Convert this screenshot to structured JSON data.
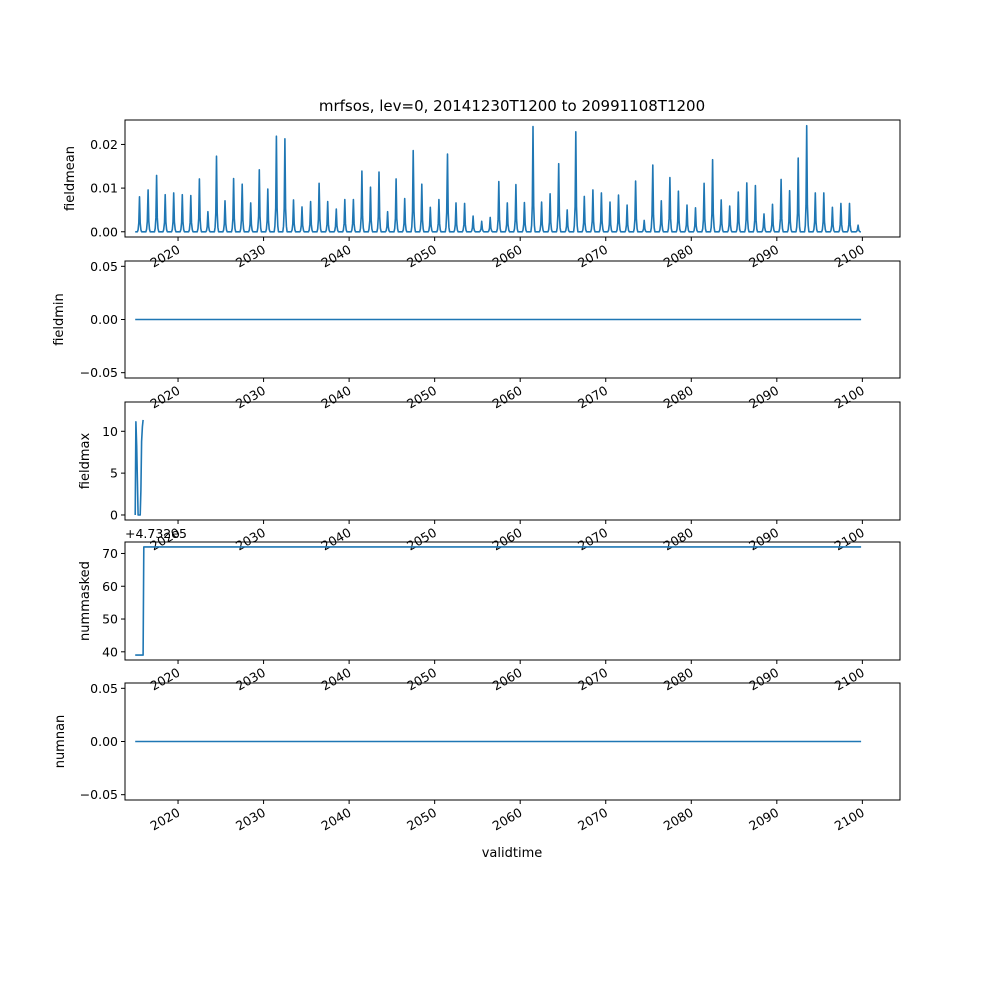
{
  "chart_data": {
    "title": "mrfsos, lev=0, 20141230T1200 to 20991108T1200",
    "xlabel": "validtime",
    "x_start": "2014-12-30",
    "x_end": "2099-11-08",
    "xlim": [
      2013.8,
      2104.4
    ],
    "x_ticks": [
      2020,
      2030,
      2040,
      2050,
      2060,
      2070,
      2080,
      2090,
      2100
    ],
    "series_step": "monthly",
    "panels": [
      {
        "type": "line",
        "ylabel": "fieldmean",
        "ylim": [
          -0.0012,
          0.0256
        ],
        "yticks": [
          0.0,
          0.01,
          0.02
        ],
        "ytick_labels": [
          "0.00",
          "0.01",
          "0.02"
        ],
        "baseline": 0.0,
        "annual_peaks": [
          {
            "year": 2015,
            "peak": 0.008
          },
          {
            "year": 2016,
            "peak": 0.0096
          },
          {
            "year": 2017,
            "peak": 0.0129
          },
          {
            "year": 2018,
            "peak": 0.0085
          },
          {
            "year": 2019,
            "peak": 0.0089
          },
          {
            "year": 2020,
            "peak": 0.0085
          },
          {
            "year": 2021,
            "peak": 0.0083
          },
          {
            "year": 2022,
            "peak": 0.0121
          },
          {
            "year": 2023,
            "peak": 0.0046
          },
          {
            "year": 2024,
            "peak": 0.0173
          },
          {
            "year": 2025,
            "peak": 0.0071
          },
          {
            "year": 2026,
            "peak": 0.0122
          },
          {
            "year": 2027,
            "peak": 0.0109
          },
          {
            "year": 2028,
            "peak": 0.0066
          },
          {
            "year": 2029,
            "peak": 0.0142
          },
          {
            "year": 2030,
            "peak": 0.0098
          },
          {
            "year": 2031,
            "peak": 0.0219
          },
          {
            "year": 2032,
            "peak": 0.0213
          },
          {
            "year": 2033,
            "peak": 0.0073
          },
          {
            "year": 2034,
            "peak": 0.0057
          },
          {
            "year": 2035,
            "peak": 0.0069
          },
          {
            "year": 2036,
            "peak": 0.0111
          },
          {
            "year": 2037,
            "peak": 0.0069
          },
          {
            "year": 2038,
            "peak": 0.0052
          },
          {
            "year": 2039,
            "peak": 0.0074
          },
          {
            "year": 2040,
            "peak": 0.0074
          },
          {
            "year": 2041,
            "peak": 0.0139
          },
          {
            "year": 2042,
            "peak": 0.0102
          },
          {
            "year": 2043,
            "peak": 0.0137
          },
          {
            "year": 2044,
            "peak": 0.0046
          },
          {
            "year": 2045,
            "peak": 0.0121
          },
          {
            "year": 2046,
            "peak": 0.0076
          },
          {
            "year": 2047,
            "peak": 0.0186
          },
          {
            "year": 2048,
            "peak": 0.0109
          },
          {
            "year": 2049,
            "peak": 0.0056
          },
          {
            "year": 2050,
            "peak": 0.0074
          },
          {
            "year": 2051,
            "peak": 0.0178
          },
          {
            "year": 2052,
            "peak": 0.0066
          },
          {
            "year": 2053,
            "peak": 0.0065
          },
          {
            "year": 2054,
            "peak": 0.0036
          },
          {
            "year": 2055,
            "peak": 0.0024
          },
          {
            "year": 2056,
            "peak": 0.0033
          },
          {
            "year": 2057,
            "peak": 0.0115
          },
          {
            "year": 2058,
            "peak": 0.0066
          },
          {
            "year": 2059,
            "peak": 0.0108
          },
          {
            "year": 2060,
            "peak": 0.0067
          },
          {
            "year": 2061,
            "peak": 0.0241
          },
          {
            "year": 2062,
            "peak": 0.0068
          },
          {
            "year": 2063,
            "peak": 0.0087
          },
          {
            "year": 2064,
            "peak": 0.0156
          },
          {
            "year": 2065,
            "peak": 0.005
          },
          {
            "year": 2066,
            "peak": 0.0229
          },
          {
            "year": 2067,
            "peak": 0.0081
          },
          {
            "year": 2068,
            "peak": 0.0096
          },
          {
            "year": 2069,
            "peak": 0.0089
          },
          {
            "year": 2070,
            "peak": 0.0068
          },
          {
            "year": 2071,
            "peak": 0.0084
          },
          {
            "year": 2072,
            "peak": 0.0061
          },
          {
            "year": 2073,
            "peak": 0.0116
          },
          {
            "year": 2074,
            "peak": 0.0026
          },
          {
            "year": 2075,
            "peak": 0.0153
          },
          {
            "year": 2076,
            "peak": 0.0071
          },
          {
            "year": 2077,
            "peak": 0.0124
          },
          {
            "year": 2078,
            "peak": 0.0093
          },
          {
            "year": 2079,
            "peak": 0.0061
          },
          {
            "year": 2080,
            "peak": 0.0055
          },
          {
            "year": 2081,
            "peak": 0.0111
          },
          {
            "year": 2082,
            "peak": 0.0165
          },
          {
            "year": 2083,
            "peak": 0.0073
          },
          {
            "year": 2084,
            "peak": 0.0059
          },
          {
            "year": 2085,
            "peak": 0.0091
          },
          {
            "year": 2086,
            "peak": 0.0112
          },
          {
            "year": 2087,
            "peak": 0.0106
          },
          {
            "year": 2088,
            "peak": 0.0041
          },
          {
            "year": 2089,
            "peak": 0.0063
          },
          {
            "year": 2090,
            "peak": 0.012
          },
          {
            "year": 2091,
            "peak": 0.0094
          },
          {
            "year": 2092,
            "peak": 0.0169
          },
          {
            "year": 2093,
            "peak": 0.0243
          },
          {
            "year": 2094,
            "peak": 0.0089
          },
          {
            "year": 2095,
            "peak": 0.0089
          },
          {
            "year": 2096,
            "peak": 0.0056
          },
          {
            "year": 2097,
            "peak": 0.0065
          },
          {
            "year": 2098,
            "peak": 0.0065
          },
          {
            "year": 2099,
            "peak": 0.0015
          }
        ]
      },
      {
        "type": "line",
        "ylabel": "fieldmin",
        "ylim": [
          -0.055,
          0.055
        ],
        "yticks": [
          -0.05,
          0.0,
          0.05
        ],
        "ytick_labels": [
          "−0.05",
          "0.00",
          "0.05"
        ],
        "value": 0.0
      },
      {
        "type": "line",
        "ylabel": "fieldmax",
        "ylim": [
          -0.6,
          13.5
        ],
        "yticks": [
          0,
          5,
          10
        ],
        "ytick_labels": [
          "0",
          "5",
          "10"
        ],
        "cycle_min": 0.0,
        "cycle_max_range": [
          10.5,
          13.0
        ]
      },
      {
        "type": "line",
        "ylabel": "nummasked",
        "ylim": [
          37.5,
          73.5
        ],
        "yticks": [
          40,
          50,
          60,
          70
        ],
        "ytick_labels": [
          "40",
          "50",
          "60",
          "70"
        ],
        "offset_text": "+4.732e5",
        "points": [
          {
            "x": "2014-12-30",
            "y": 39
          },
          {
            "x": "2015-12-01",
            "y": 39
          },
          {
            "x": "2016-01-01",
            "y": 72
          },
          {
            "x": "2099-11-08",
            "y": 72
          }
        ]
      },
      {
        "type": "line",
        "ylabel": "numnan",
        "ylim": [
          -0.055,
          0.055
        ],
        "yticks": [
          -0.05,
          0.0,
          0.05
        ],
        "ytick_labels": [
          "−0.05",
          "0.00",
          "0.05"
        ],
        "value": 0.0
      }
    ]
  }
}
